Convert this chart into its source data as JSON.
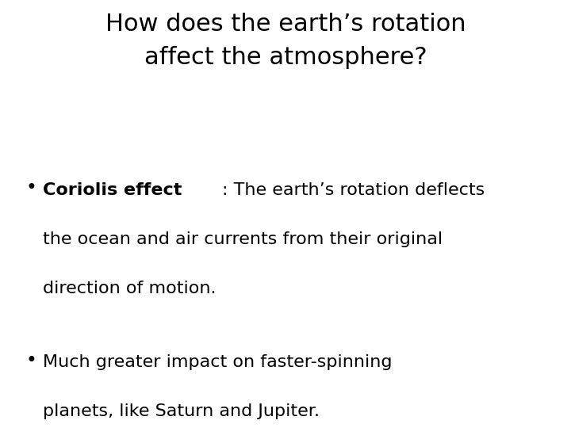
{
  "background_color": "#ffffff",
  "title_line1": "How does the earth’s rotation",
  "title_line2": "affect the atmosphere?",
  "title_fontsize": 22,
  "title_color": "#000000",
  "bullet1_bold": "Coriolis effect",
  "bullet1_colon_rest": ": The earth’s rotation deflects",
  "bullet1_line2": "the ocean and air currents from their original",
  "bullet1_line3": "direction of motion.",
  "bullet2_line1": "Much greater impact on faster-spinning",
  "bullet2_line2": "planets, like Saturn and Jupiter.",
  "bullet_fontsize": 16,
  "bullet_color": "#000000",
  "font": "DejaVu Sans"
}
